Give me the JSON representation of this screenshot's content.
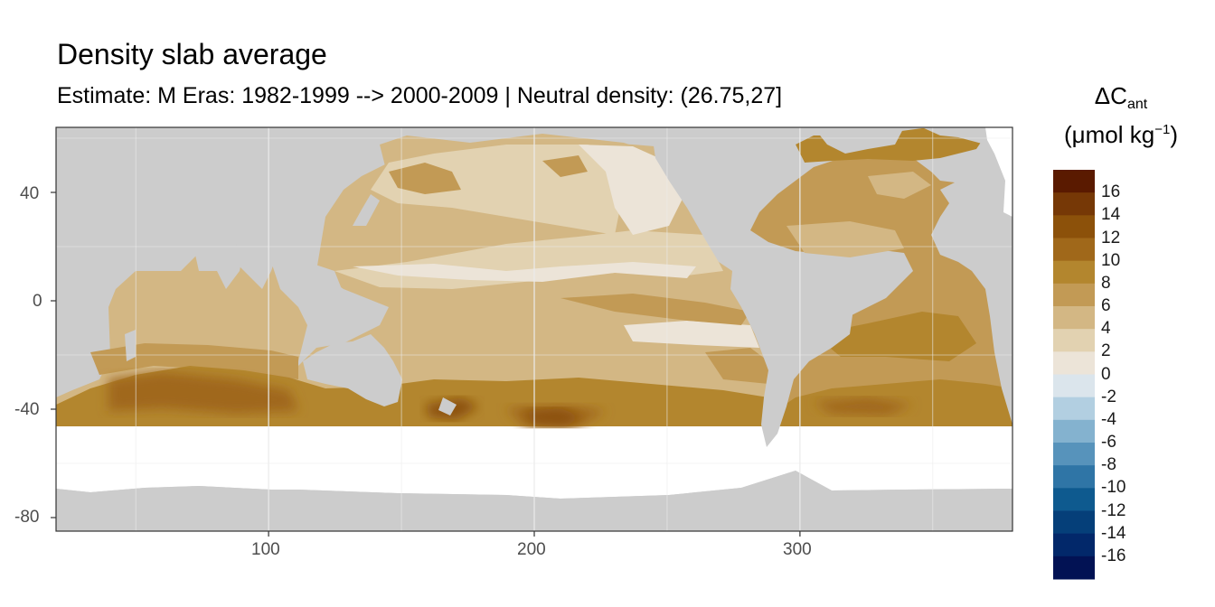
{
  "title": "Density slab average",
  "subtitle": "Estimate: M Eras: 1982-1999 --> 2000-2009 | Neutral density: (26.75,27]",
  "legend": {
    "title_main": "ΔC",
    "title_sub": "ant",
    "unit_open": "(μmol kg",
    "unit_sup": "−1",
    "unit_close": ")",
    "bins": [
      {
        "label": "16",
        "color": "#5a1a00"
      },
      {
        "label": "14",
        "color": "#763806"
      },
      {
        "label": "12",
        "color": "#8c510a"
      },
      {
        "label": "10",
        "color": "#a0681a"
      },
      {
        "label": "8",
        "color": "#b3862e"
      },
      {
        "label": "6",
        "color": "#c29a55"
      },
      {
        "label": "4",
        "color": "#d3b784"
      },
      {
        "label": "2",
        "color": "#e2d2b1"
      },
      {
        "label": "0",
        "color": "#ece4d8"
      },
      {
        "label": "-2",
        "color": "#dbe5ec"
      },
      {
        "label": "-4",
        "color": "#b2cfe1"
      },
      {
        "label": "-6",
        "color": "#84b2cf"
      },
      {
        "label": "-8",
        "color": "#5793bb"
      },
      {
        "label": "-10",
        "color": "#2f75a6"
      },
      {
        "label": "-12",
        "color": "#0e5a8f"
      },
      {
        "label": "-14",
        "color": "#053f79"
      },
      {
        "label": "-16",
        "color": "#02286a"
      },
      {
        "label": "",
        "color": "#021254"
      }
    ]
  },
  "axes": {
    "x": {
      "range": [
        20,
        380
      ],
      "ticks": [
        "100",
        "200",
        "300"
      ]
    },
    "y": {
      "range": [
        -85,
        64
      ],
      "ticks": [
        "40",
        "0",
        "-40",
        "-80"
      ]
    }
  },
  "colors": {
    "land": "#cccccc",
    "nodata": "#ffffff",
    "grid": "#ebebeb",
    "frame": "#333333"
  }
}
